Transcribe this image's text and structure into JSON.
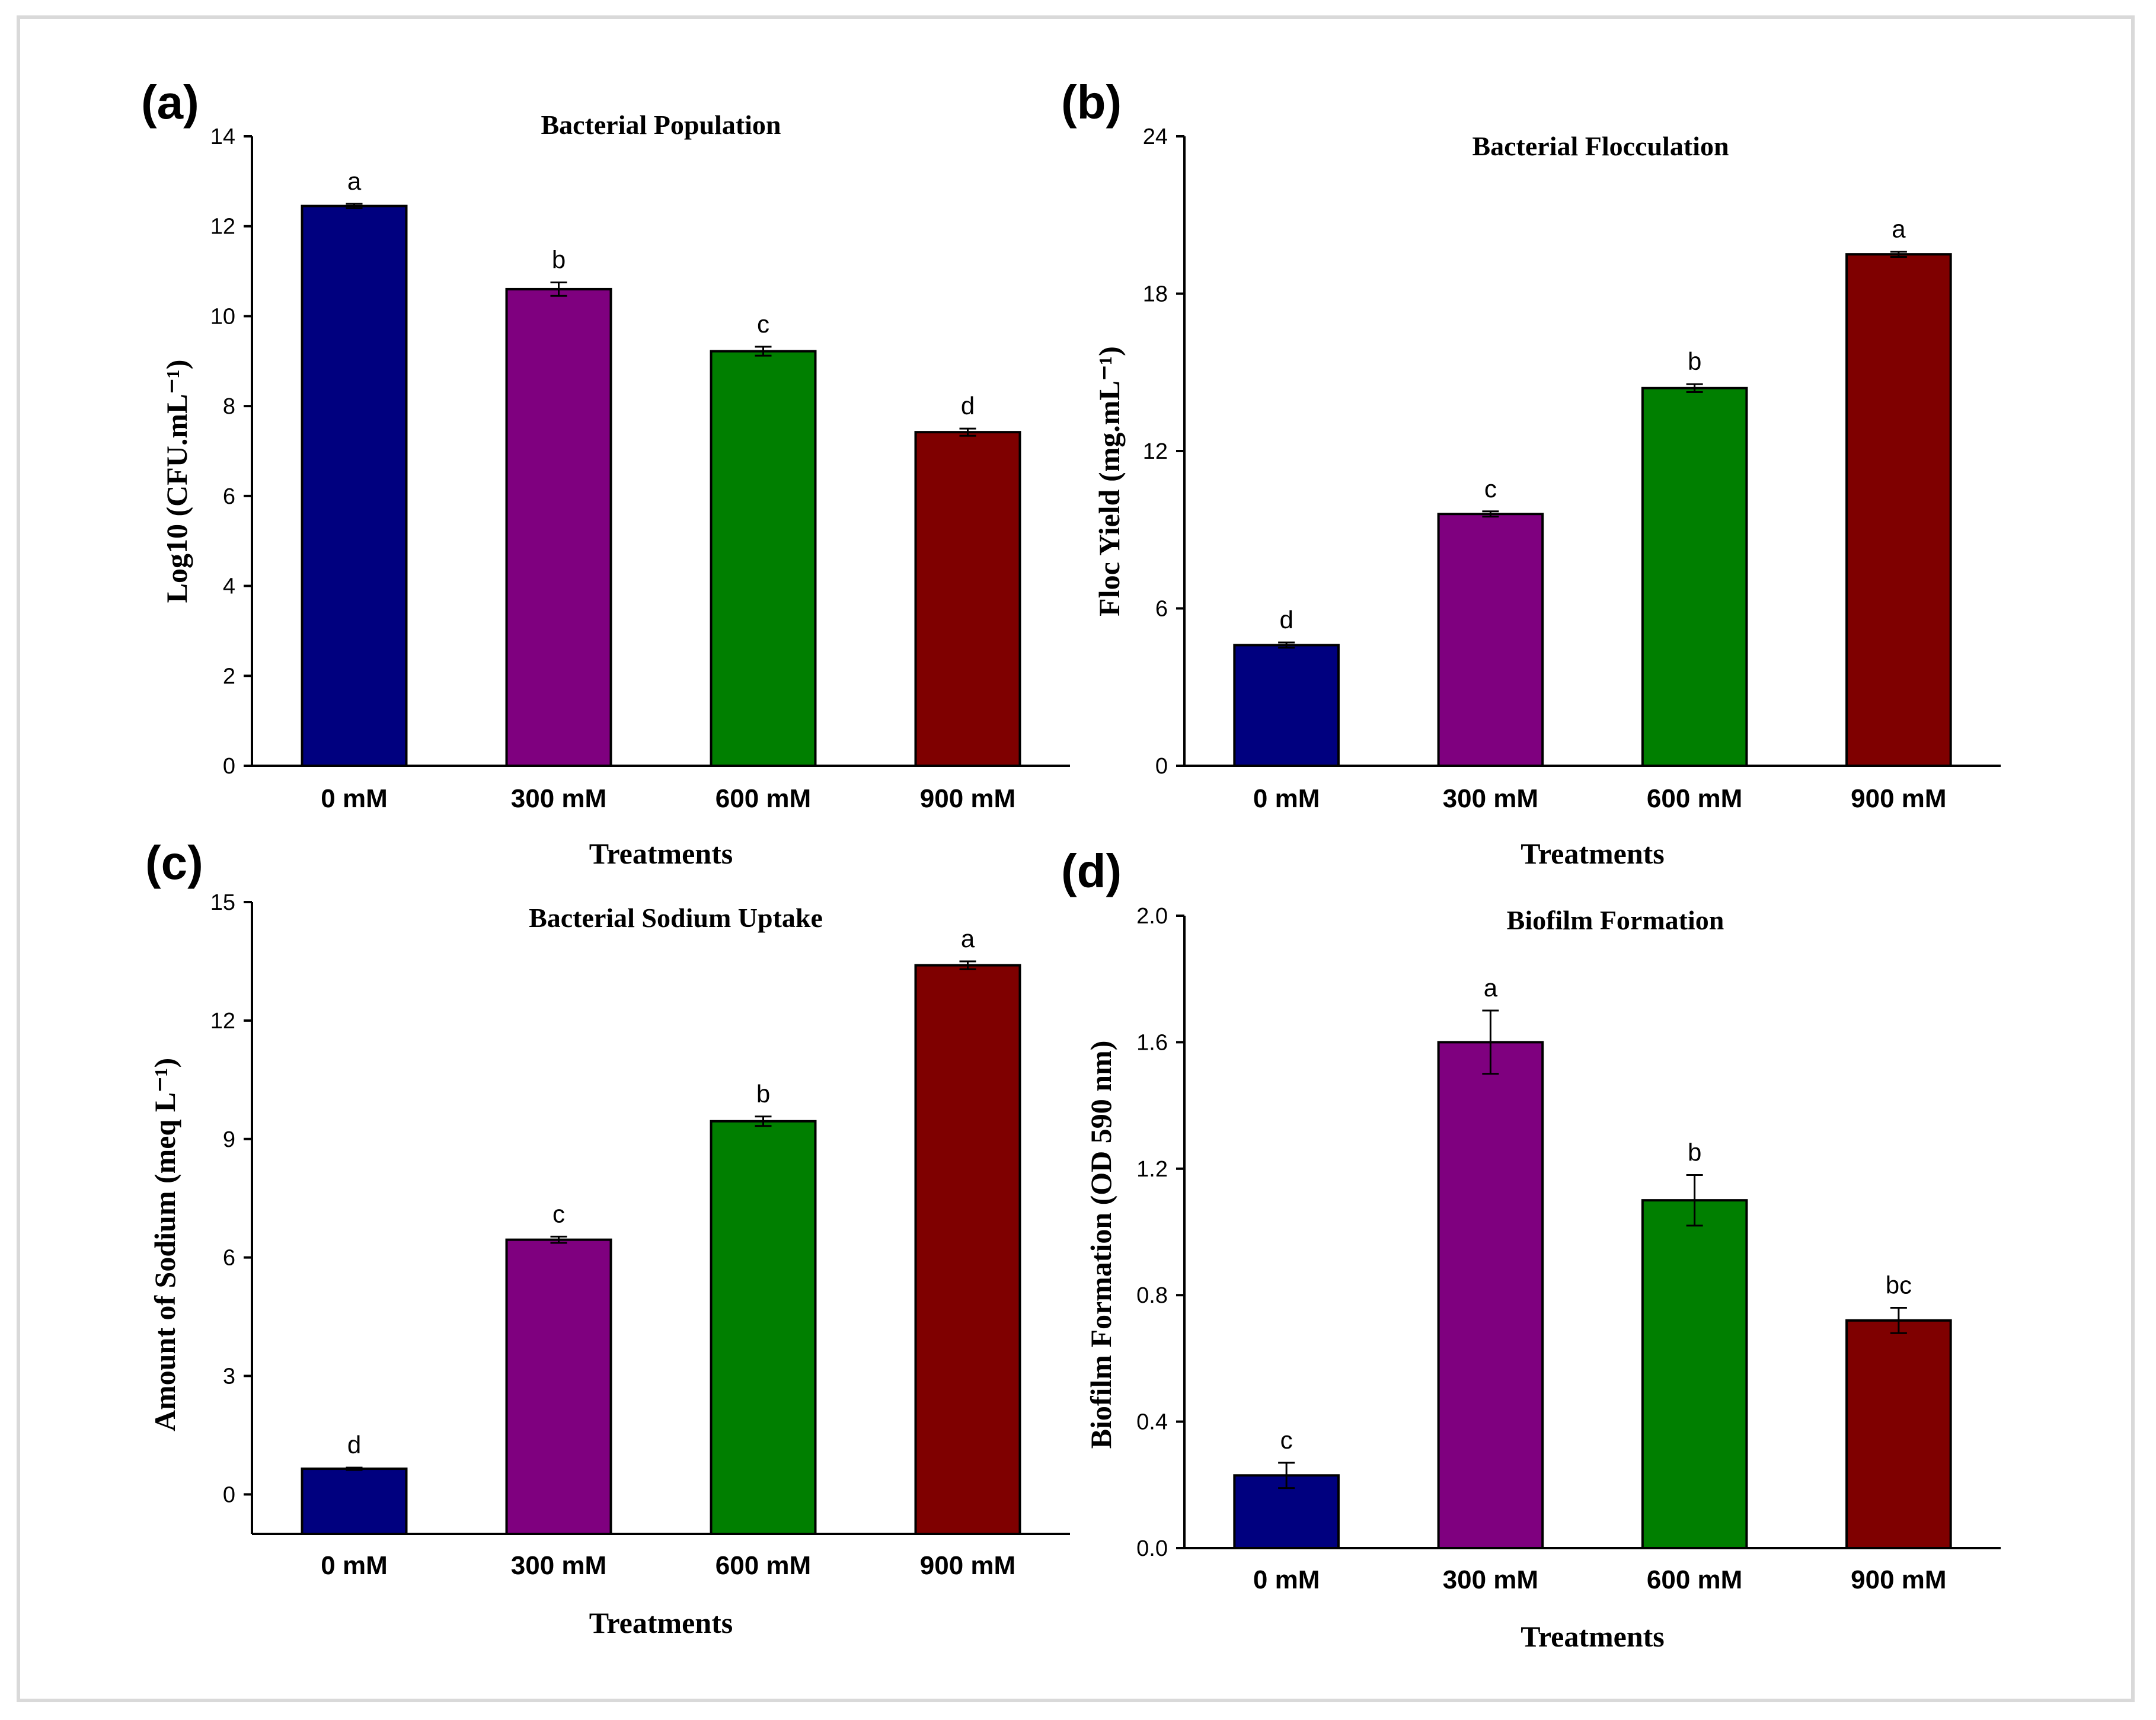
{
  "colors": {
    "0 mM": "#00007f",
    "300 mM": "#7f007f",
    "600 mM": "#007f00",
    "900 mM": "#7f0000"
  },
  "chart_data": [
    {
      "type": "bar",
      "panel": "(a)",
      "title": "Bacterial Population",
      "xlabel": "Treatments",
      "ylabel": "Log10 (CFU.mL⁻¹)",
      "categories": [
        "0 mM",
        "300 mM",
        "600 mM",
        "900 mM"
      ],
      "values": [
        12.45,
        10.6,
        9.22,
        7.42
      ],
      "errors": [
        0.05,
        0.15,
        0.1,
        0.08
      ],
      "significance": [
        "a",
        "b",
        "c",
        "d"
      ],
      "ylim": [
        0,
        14
      ],
      "yticks": [
        0,
        2,
        4,
        6,
        8,
        10,
        12,
        14
      ],
      "ytick_labels": [
        "0",
        "2",
        "4",
        "6",
        "8",
        "10",
        "12",
        "14"
      ]
    },
    {
      "type": "bar",
      "panel": "(b)",
      "title": "Bacterial Flocculation",
      "xlabel": "Treatments",
      "ylabel": "Floc Yield (mg.mL⁻¹)",
      "categories": [
        "0 mM",
        "300 mM",
        "600 mM",
        "900 mM"
      ],
      "values": [
        4.6,
        9.6,
        14.4,
        19.5
      ],
      "errors": [
        0.1,
        0.1,
        0.15,
        0.1
      ],
      "significance": [
        "d",
        "c",
        "b",
        "a"
      ],
      "ylim": [
        0,
        24
      ],
      "yticks": [
        0,
        6,
        12,
        18,
        24
      ],
      "ytick_labels": [
        "0",
        "6",
        "12",
        "18",
        "24"
      ]
    },
    {
      "type": "bar",
      "panel": "(c)",
      "title": "Bacterial Sodium Uptake",
      "xlabel": "Treatments",
      "ylabel": "Amount of Sodium (meq L⁻¹)",
      "categories": [
        "0 mM",
        "300 mM",
        "600 mM",
        "900 mM"
      ],
      "values": [
        0.65,
        6.45,
        9.45,
        13.4
      ],
      "errors": [
        0.03,
        0.08,
        0.12,
        0.1
      ],
      "significance": [
        "d",
        "c",
        "b",
        "a"
      ],
      "ylim": [
        -1,
        15
      ],
      "yticks": [
        0,
        3,
        6,
        9,
        12,
        15
      ],
      "ytick_labels": [
        "0",
        "3",
        "6",
        "9",
        "12",
        "15"
      ]
    },
    {
      "type": "bar",
      "panel": "(d)",
      "title": "Biofilm Formation",
      "xlabel": "Treatments",
      "ylabel": "Biofilm Formation (OD 590 nm)",
      "categories": [
        "0 mM",
        "300 mM",
        "600 mM",
        "900 mM"
      ],
      "values": [
        0.23,
        1.6,
        1.1,
        0.72
      ],
      "errors": [
        0.04,
        0.1,
        0.08,
        0.04
      ],
      "significance": [
        "c",
        "a",
        "b",
        "bc"
      ],
      "ylim": [
        0,
        2.0
      ],
      "yticks": [
        0,
        0.4,
        0.8,
        1.2,
        1.6,
        2.0
      ],
      "ytick_labels": [
        "0.0",
        "0.4",
        "0.8",
        "1.2",
        "1.6",
        "2.0"
      ]
    }
  ]
}
